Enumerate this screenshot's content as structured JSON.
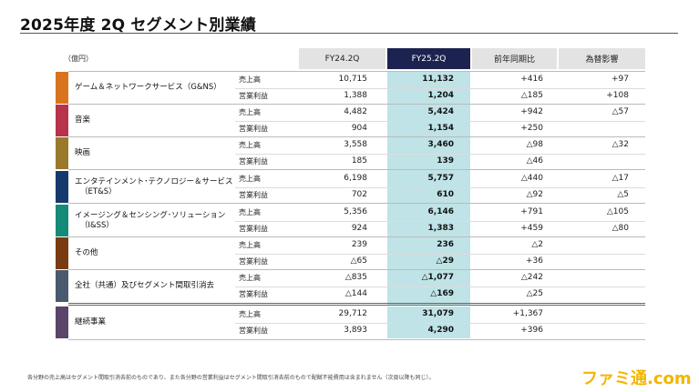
{
  "title": "2025年度 2Q セグメント別業績",
  "unit": "（億円）",
  "headers": {
    "prev": "FY24.2Q",
    "curr": "FY25.2Q",
    "yoy": "前年同期比",
    "fx": "為替影響"
  },
  "segments": [
    {
      "name_lines": [
        "ゲーム＆ネットワークサービス（G&NS）"
      ],
      "color": "#d9731d",
      "rows": [
        {
          "metric": "売上高",
          "prev": "10,715",
          "curr": "11,132",
          "yoy": "+416",
          "fx": "+97"
        },
        {
          "metric": "営業利益",
          "prev": "1,388",
          "curr": "1,204",
          "yoy": "△185",
          "fx": "+108"
        }
      ]
    },
    {
      "name_lines": [
        "音楽"
      ],
      "color": "#b8324a",
      "rows": [
        {
          "metric": "売上高",
          "prev": "4,482",
          "curr": "5,424",
          "yoy": "+942",
          "fx": "△57"
        },
        {
          "metric": "営業利益",
          "prev": "904",
          "curr": "1,154",
          "yoy": "+250",
          "fx": ""
        }
      ]
    },
    {
      "name_lines": [
        "映画"
      ],
      "color": "#9a7a2a",
      "rows": [
        {
          "metric": "売上高",
          "prev": "3,558",
          "curr": "3,460",
          "yoy": "△98",
          "fx": "△32"
        },
        {
          "metric": "営業利益",
          "prev": "185",
          "curr": "139",
          "yoy": "△46",
          "fx": ""
        }
      ]
    },
    {
      "name_lines": [
        "エンタテインメント･テクノロジー＆サービス",
        "（ET&S）"
      ],
      "color": "#163a6e",
      "rows": [
        {
          "metric": "売上高",
          "prev": "6,198",
          "curr": "5,757",
          "yoy": "△440",
          "fx": "△17"
        },
        {
          "metric": "営業利益",
          "prev": "702",
          "curr": "610",
          "yoy": "△92",
          "fx": "△5"
        }
      ]
    },
    {
      "name_lines": [
        "イメージング＆センシング･ソリューション",
        "（I&SS）"
      ],
      "color": "#158a78",
      "rows": [
        {
          "metric": "売上高",
          "prev": "5,356",
          "curr": "6,146",
          "yoy": "+791",
          "fx": "△105"
        },
        {
          "metric": "営業利益",
          "prev": "924",
          "curr": "1,383",
          "yoy": "+459",
          "fx": "△80"
        }
      ]
    },
    {
      "name_lines": [
        "その他"
      ],
      "color": "#7a3a12",
      "rows": [
        {
          "metric": "売上高",
          "prev": "239",
          "curr": "236",
          "yoy": "△2",
          "fx": ""
        },
        {
          "metric": "営業利益",
          "prev": "△65",
          "curr": "△29",
          "yoy": "+36",
          "fx": ""
        }
      ]
    },
    {
      "name_lines": [
        "全社（共通）及びセグメント間取引消去"
      ],
      "color": "#4a5a6e",
      "rows": [
        {
          "metric": "売上高",
          "prev": "△835",
          "curr": "△1,077",
          "yoy": "△242",
          "fx": ""
        },
        {
          "metric": "営業利益",
          "prev": "△144",
          "curr": "△169",
          "yoy": "△25",
          "fx": ""
        }
      ]
    },
    {
      "name_lines": [
        "継続事業"
      ],
      "color": "#5a4568",
      "rows": [
        {
          "metric": "売上高",
          "prev": "29,712",
          "curr": "31,079",
          "yoy": "+1,367",
          "fx": ""
        },
        {
          "metric": "営業利益",
          "prev": "3,893",
          "curr": "4,290",
          "yoy": "+396",
          "fx": ""
        }
      ]
    }
  ],
  "footnote": "各分野の売上高はセグメント間取引消去前のものであり、また各分野の営業利益はセグメント間取引消去前のもので配賦不能費用は含まれません（次頁以降も同じ）。",
  "logo": {
    "text": "ファミ通.com",
    "color": "#f2b600",
    "stroke": "#ffffff"
  }
}
